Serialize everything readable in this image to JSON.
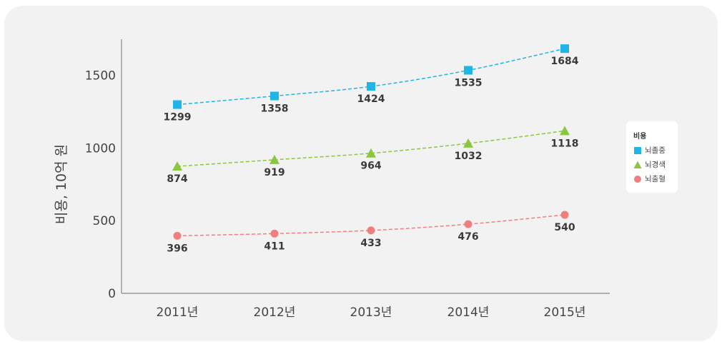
{
  "chart_data": {
    "type": "line",
    "categories": [
      "2011년",
      "2012년",
      "2013년",
      "2014년",
      "2015년"
    ],
    "ylabel": "비용, 10억 원",
    "ylim": [
      0,
      1750
    ],
    "yticks": [
      "0",
      "500",
      "1000",
      "1500"
    ],
    "grid": false,
    "legend": {
      "title": "비용",
      "placement": "right"
    },
    "series": [
      {
        "name": "뇌졸중",
        "marker": "square",
        "color": "#1fb5e6",
        "values": [
          1299,
          1358,
          1424,
          1535,
          1684
        ]
      },
      {
        "name": "뇌경색",
        "marker": "triangle",
        "color": "#8cc63f",
        "values": [
          874,
          919,
          964,
          1032,
          1118
        ]
      },
      {
        "name": "뇌출혈",
        "marker": "circle",
        "color": "#ef7f7f",
        "values": [
          396,
          411,
          433,
          476,
          540
        ]
      }
    ]
  }
}
